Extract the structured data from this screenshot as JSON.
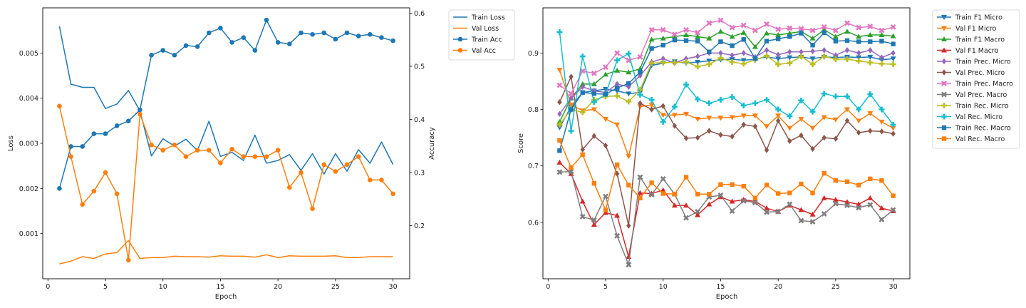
{
  "chart_data": [
    {
      "type": "line",
      "x": [
        1,
        2,
        3,
        4,
        5,
        6,
        7,
        8,
        9,
        10,
        11,
        12,
        13,
        14,
        15,
        16,
        17,
        18,
        19,
        20,
        21,
        22,
        23,
        24,
        25,
        26,
        27,
        28,
        29,
        30
      ],
      "xlabel": "Epoch",
      "ylabel_left": "Loss",
      "ylabel_right": "Accuracy",
      "xlim": [
        -0.45,
        31.45
      ],
      "ylim_left": [
        0,
        0.006
      ],
      "ylim_right": [
        0.1,
        0.61
      ],
      "xticks": [
        0,
        5,
        10,
        15,
        20,
        25,
        30
      ],
      "yticks_left": [
        0.001,
        0.002,
        0.003,
        0.004,
        0.005
      ],
      "yticks_right": [
        0.2,
        0.3,
        0.4,
        0.5,
        0.6
      ],
      "grid": false,
      "legend_position": "outside-right-top",
      "series": [
        {
          "name": "Train Loss",
          "axis": "left",
          "color": "#1f77b4",
          "marker": "none",
          "values": [
            0.00559,
            0.00431,
            0.00424,
            0.00424,
            0.00377,
            0.00387,
            0.00417,
            0.00372,
            0.00272,
            0.0031,
            0.00294,
            0.00309,
            0.00284,
            0.00349,
            0.00271,
            0.0028,
            0.00262,
            0.00318,
            0.00256,
            0.00262,
            0.00275,
            0.0024,
            0.00277,
            0.00232,
            0.00277,
            0.00238,
            0.00286,
            0.00256,
            0.00303,
            0.00253
          ]
        },
        {
          "name": "Val Loss",
          "axis": "left",
          "color": "#ff7f0e",
          "marker": "none",
          "values": [
            0.00033,
            0.00039,
            0.00049,
            0.00045,
            0.00055,
            0.00058,
            0.00085,
            0.00045,
            0.00047,
            0.00047,
            0.0005,
            0.00049,
            0.00049,
            0.00048,
            0.00051,
            0.0005,
            0.0005,
            0.00048,
            0.00053,
            0.00047,
            0.00051,
            0.0005,
            0.0005,
            0.0005,
            0.00051,
            0.00047,
            0.00047,
            0.00049,
            0.00049,
            0.00049
          ]
        },
        {
          "name": "Train Acc",
          "axis": "right",
          "color": "#1f77b4",
          "marker": "circle",
          "values": [
            0.27,
            0.349,
            0.349,
            0.373,
            0.373,
            0.388,
            0.397,
            0.418,
            0.521,
            0.53,
            0.521,
            0.539,
            0.537,
            0.563,
            0.572,
            0.545,
            0.554,
            0.53,
            0.587,
            0.545,
            0.542,
            0.563,
            0.56,
            0.563,
            0.551,
            0.563,
            0.557,
            0.56,
            0.554,
            0.548
          ]
        },
        {
          "name": "Val Acc",
          "axis": "right",
          "color": "#ff7f0e",
          "marker": "circle",
          "values": [
            0.425,
            0.33,
            0.24,
            0.265,
            0.3,
            0.26,
            0.135,
            0.41,
            0.352,
            0.342,
            0.352,
            0.33,
            0.342,
            0.342,
            0.318,
            0.344,
            0.33,
            0.33,
            0.33,
            0.342,
            0.272,
            0.3,
            0.232,
            0.315,
            0.302,
            0.315,
            0.33,
            0.286,
            0.286,
            0.26
          ]
        }
      ]
    },
    {
      "type": "line",
      "x": [
        1,
        2,
        3,
        4,
        5,
        6,
        7,
        8,
        9,
        10,
        11,
        12,
        13,
        14,
        15,
        16,
        17,
        18,
        19,
        20,
        21,
        22,
        23,
        24,
        25,
        26,
        27,
        28,
        29,
        30
      ],
      "xlabel": "Epoch",
      "ylabel": "Score",
      "xlim": [
        -0.45,
        31.45
      ],
      "ylim": [
        0.5,
        0.98
      ],
      "xticks": [
        0,
        5,
        10,
        15,
        20,
        25,
        30
      ],
      "yticks": [
        0.6,
        0.7,
        0.8,
        0.9
      ],
      "grid": false,
      "legend_position": "outside-right-top",
      "series": [
        {
          "name": "Train F1 Micro",
          "color": "#1f77b4",
          "marker": "triangle-down",
          "values": [
            0.768,
            0.805,
            0.83,
            0.833,
            0.836,
            0.833,
            0.828,
            0.83,
            0.878,
            0.882,
            0.885,
            0.882,
            0.884,
            0.886,
            0.888,
            0.889,
            0.887,
            0.889,
            0.893,
            0.89,
            0.892,
            0.893,
            0.89,
            0.893,
            0.892,
            0.893,
            0.892,
            0.893,
            0.888,
            0.89
          ]
        },
        {
          "name": "Val F1 Micro",
          "color": "#ff7f0e",
          "marker": "triangle-down",
          "values": [
            0.87,
            0.808,
            0.798,
            0.8,
            0.783,
            0.773,
            0.717,
            0.805,
            0.808,
            0.79,
            0.79,
            0.792,
            0.783,
            0.785,
            0.785,
            0.786,
            0.789,
            0.789,
            0.77,
            0.789,
            0.767,
            0.783,
            0.767,
            0.786,
            0.782,
            0.8,
            0.78,
            0.793,
            0.778,
            0.767
          ]
        },
        {
          "name": "Train F1 Macro",
          "color": "#2ca02c",
          "marker": "triangle-up",
          "values": [
            0.778,
            0.82,
            0.845,
            0.845,
            0.862,
            0.869,
            0.866,
            0.872,
            0.924,
            0.926,
            0.929,
            0.932,
            0.929,
            0.926,
            0.938,
            0.929,
            0.936,
            0.911,
            0.935,
            0.932,
            0.935,
            0.938,
            0.926,
            0.941,
            0.929,
            0.938,
            0.929,
            0.932,
            0.932,
            0.93
          ]
        },
        {
          "name": "Val F1 Macro",
          "color": "#d62728",
          "marker": "triangle-up",
          "values": [
            0.706,
            0.686,
            0.637,
            0.596,
            0.617,
            0.612,
            0.539,
            0.652,
            0.651,
            0.657,
            0.63,
            0.63,
            0.613,
            0.632,
            0.645,
            0.637,
            0.64,
            0.637,
            0.625,
            0.619,
            0.63,
            0.622,
            0.614,
            0.643,
            0.64,
            0.636,
            0.632,
            0.643,
            0.625,
            0.62
          ]
        },
        {
          "name": "Train Prec. Micro",
          "color": "#9467bd",
          "marker": "diamond",
          "values": [
            0.792,
            0.82,
            0.84,
            0.833,
            0.83,
            0.845,
            0.84,
            0.86,
            0.884,
            0.89,
            0.882,
            0.89,
            0.894,
            0.9,
            0.9,
            0.896,
            0.9,
            0.893,
            0.905,
            0.897,
            0.902,
            0.902,
            0.903,
            0.905,
            0.896,
            0.905,
            0.9,
            0.905,
            0.892,
            0.9
          ]
        },
        {
          "name": "Val Prec. Micro",
          "color": "#8c564b",
          "marker": "diamond",
          "values": [
            0.813,
            0.858,
            0.729,
            0.753,
            0.736,
            0.686,
            0.594,
            0.811,
            0.8,
            0.806,
            0.771,
            0.749,
            0.75,
            0.762,
            0.755,
            0.752,
            0.773,
            0.77,
            0.728,
            0.78,
            0.744,
            0.754,
            0.73,
            0.75,
            0.748,
            0.78,
            0.759,
            0.762,
            0.761,
            0.757
          ]
        },
        {
          "name": "Train Prec. Macro",
          "color": "#e377c2",
          "marker": "x-filled",
          "values": [
            0.843,
            0.828,
            0.868,
            0.864,
            0.875,
            0.9,
            0.887,
            0.893,
            0.941,
            0.941,
            0.933,
            0.941,
            0.936,
            0.953,
            0.958,
            0.945,
            0.949,
            0.94,
            0.951,
            0.942,
            0.944,
            0.943,
            0.94,
            0.946,
            0.94,
            0.953,
            0.945,
            0.947,
            0.94,
            0.946
          ]
        },
        {
          "name": "Val Prec. Macro",
          "color": "#7f7f7f",
          "marker": "x-filled",
          "values": [
            0.689,
            0.69,
            0.61,
            0.604,
            0.646,
            0.576,
            0.525,
            0.68,
            0.649,
            0.677,
            0.65,
            0.608,
            0.619,
            0.645,
            0.648,
            0.62,
            0.638,
            0.635,
            0.618,
            0.619,
            0.632,
            0.603,
            0.601,
            0.615,
            0.633,
            0.63,
            0.626,
            0.631,
            0.605,
            0.622
          ]
        },
        {
          "name": "Train Rec. Micro",
          "color": "#bcbd22",
          "marker": "plus-filled",
          "values": [
            0.773,
            0.8,
            0.795,
            0.817,
            0.823,
            0.824,
            0.814,
            0.835,
            0.882,
            0.883,
            0.883,
            0.884,
            0.876,
            0.88,
            0.891,
            0.884,
            0.881,
            0.888,
            0.895,
            0.88,
            0.882,
            0.894,
            0.88,
            0.894,
            0.889,
            0.889,
            0.886,
            0.883,
            0.881,
            0.88
          ]
        },
        {
          "name": "Val Rec. Micro",
          "color": "#17becf",
          "marker": "plus-filled",
          "values": [
            0.937,
            0.762,
            0.894,
            0.813,
            0.827,
            0.887,
            0.899,
            0.826,
            0.817,
            0.778,
            0.805,
            0.844,
            0.818,
            0.811,
            0.817,
            0.822,
            0.807,
            0.811,
            0.817,
            0.8,
            0.788,
            0.816,
            0.796,
            0.828,
            0.823,
            0.823,
            0.8,
            0.827,
            0.8,
            0.773
          ]
        },
        {
          "name": "Train Rec. Macro",
          "color": "#1f77b4",
          "marker": "square",
          "values": [
            0.727,
            0.8,
            0.83,
            0.828,
            0.827,
            0.838,
            0.846,
            0.866,
            0.908,
            0.914,
            0.923,
            0.922,
            0.921,
            0.902,
            0.92,
            0.913,
            0.924,
            0.89,
            0.921,
            0.925,
            0.929,
            0.935,
            0.914,
            0.936,
            0.921,
            0.922,
            0.92,
            0.92,
            0.921,
            0.916
          ]
        },
        {
          "name": "Val Rec. Macro",
          "color": "#ff7f0e",
          "marker": "square",
          "values": [
            0.745,
            0.697,
            0.72,
            0.669,
            0.622,
            0.702,
            0.666,
            0.643,
            0.67,
            0.651,
            0.65,
            0.68,
            0.65,
            0.65,
            0.667,
            0.667,
            0.664,
            0.643,
            0.666,
            0.651,
            0.652,
            0.668,
            0.652,
            0.687,
            0.674,
            0.672,
            0.666,
            0.677,
            0.674,
            0.647
          ]
        }
      ]
    }
  ]
}
